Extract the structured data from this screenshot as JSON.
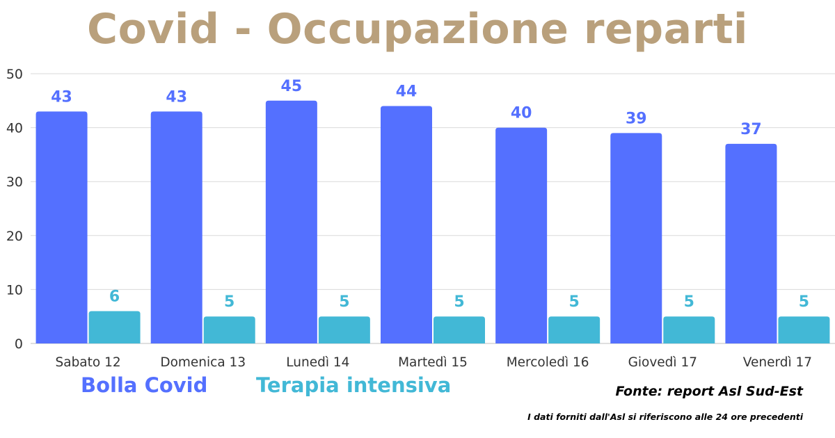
{
  "title": "Covid - Occupazione reparti",
  "colors": {
    "title": "#b9a07c",
    "bolla": "#5470ff",
    "terapia": "#42b8d6",
    "grid": "#d9d9d9",
    "axis_text": "#333333"
  },
  "legend": [
    {
      "label": "Bolla Covid",
      "color": "#5470ff"
    },
    {
      "label": "Terapia intensiva",
      "color": "#42b8d6"
    }
  ],
  "source": "Fonte: report Asl Sud-Est",
  "note": "I dati forniti dall'Asl si riferiscono alle 24 ore precedenti",
  "chart_data": {
    "type": "bar",
    "title": "Covid - Occupazione reparti",
    "categories": [
      "Sabato 12",
      "Domenica 13",
      "Lunedì 14",
      "Martedì 15",
      "Mercoledì 16",
      "Giovedì 17",
      "Venerdì 17"
    ],
    "series": [
      {
        "name": "Bolla Covid",
        "values": [
          43,
          43,
          45,
          44,
          40,
          39,
          37
        ]
      },
      {
        "name": "Terapia intensiva",
        "values": [
          6,
          5,
          5,
          5,
          5,
          5,
          5
        ]
      }
    ],
    "ylim": [
      0,
      50
    ],
    "yticks": [
      "0",
      "10",
      "20",
      "30",
      "40",
      "50"
    ],
    "grid": true,
    "legend_position": "bottom-left",
    "data_labels": true
  }
}
